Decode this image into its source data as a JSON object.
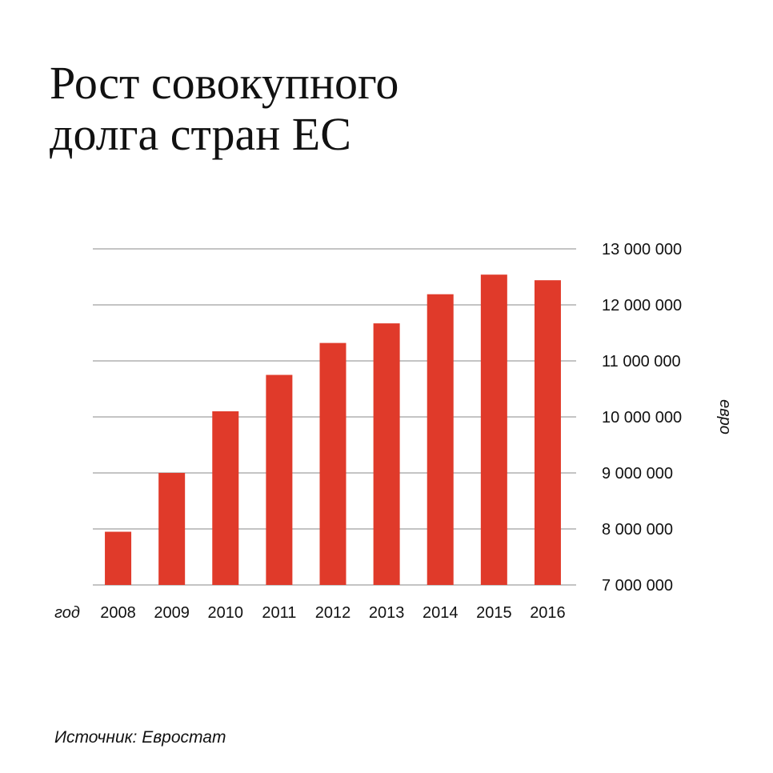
{
  "title": {
    "line1": "Рост совокупного",
    "line2": "долга стран ЕС"
  },
  "source": "Источник: Евростат",
  "colors": {
    "bar": "#e03a2a",
    "grid": "#b0b0b0",
    "text": "#111111"
  },
  "chart_data": {
    "type": "bar",
    "title": "Рост совокупного долга стран ЕС",
    "xlabel": "год",
    "ylabel": "евро",
    "categories": [
      "2008",
      "2009",
      "2010",
      "2011",
      "2012",
      "2013",
      "2014",
      "2015",
      "2016"
    ],
    "values": [
      7950000,
      9000000,
      10100000,
      10750000,
      11320000,
      11670000,
      12190000,
      12540000,
      12440000
    ],
    "ylim": [
      7000000,
      13000000
    ],
    "yticks": [
      7000000,
      8000000,
      9000000,
      10000000,
      11000000,
      12000000,
      13000000
    ],
    "ytick_labels": [
      "7 000 000",
      "8 000 000",
      "9 000 000",
      "10 000 000",
      "11 000 000",
      "12 000 000",
      "13 000 000"
    ],
    "y_axis_side": "right",
    "grid": true,
    "legend": "none"
  }
}
